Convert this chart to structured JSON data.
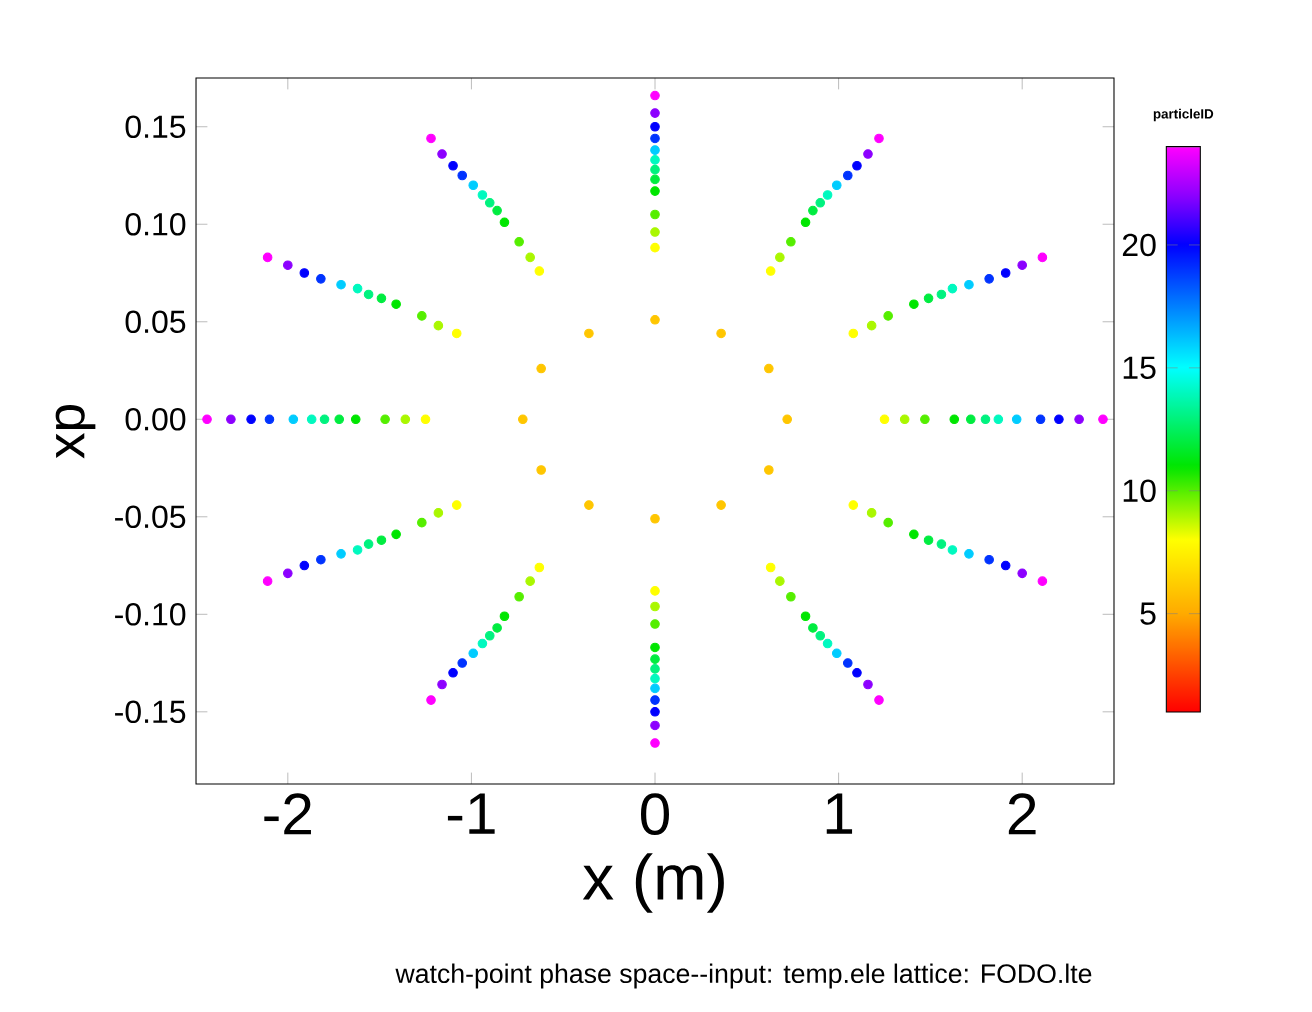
{
  "chart_data": {
    "type": "scatter",
    "xlabel": "x (m)",
    "ylabel": "xp",
    "clabel": "particleID",
    "annotations": [
      "watch-point phase space--input: temp.ele  lattice: FODO.lte"
    ],
    "xlim": [
      -2.5,
      2.5
    ],
    "xticks": [
      -2,
      -1,
      0,
      1,
      2
    ],
    "ylim": [
      -0.187,
      0.175
    ],
    "yticks": [
      {
        "value": -0.15,
        "label": "-0.15"
      },
      {
        "value": -0.1,
        "label": "-0.10"
      },
      {
        "value": -0.05,
        "label": "-0.05"
      },
      {
        "value": 0,
        "label": "0.00"
      },
      {
        "value": 0.05,
        "label": "0.05"
      },
      {
        "value": 0.1,
        "label": "0.10"
      },
      {
        "value": 0.15,
        "label": "0.15"
      }
    ],
    "clim": [
      1,
      24
    ],
    "cticks": [
      5,
      10,
      15,
      20
    ],
    "grid": false,
    "marker": "circle",
    "series": [
      {
        "x": [
          0.72,
          0.62,
          0.36,
          0,
          -0.36,
          -0.62,
          -0.72,
          -0.62,
          -0.36,
          0,
          0.36,
          0.62
        ],
        "values": [
          0,
          0.026,
          0.044,
          0.051,
          0.044,
          0.026,
          0,
          -0.026,
          -0.044,
          -0.051,
          -0.044,
          -0.026
        ],
        "cvalues": [
          6,
          6,
          6,
          6,
          6,
          6,
          6,
          6,
          6,
          6,
          6,
          6
        ]
      },
      {
        "x": [
          1.25,
          1.08,
          0.63,
          0,
          -0.63,
          -1.08,
          -1.25,
          -1.08,
          -0.63,
          0,
          0.63,
          1.08
        ],
        "values": [
          0,
          0.044,
          0.076,
          0.088,
          0.076,
          0.044,
          0,
          -0.044,
          -0.076,
          -0.088,
          -0.076,
          -0.044
        ],
        "cvalues": [
          8,
          8,
          8,
          8,
          8,
          8,
          8,
          8,
          8,
          8,
          8,
          8
        ]
      },
      {
        "x": [
          1.36,
          1.18,
          0.68,
          0,
          -0.68,
          -1.18,
          -1.36,
          -1.18,
          -0.68,
          0,
          0.68,
          1.18
        ],
        "values": [
          0,
          0.048,
          0.083,
          0.096,
          0.083,
          0.048,
          0,
          -0.048,
          -0.083,
          -0.096,
          -0.083,
          -0.048
        ],
        "cvalues": [
          9,
          9,
          9,
          9,
          9,
          9,
          9,
          9,
          9,
          9,
          9,
          9
        ]
      },
      {
        "x": [
          1.47,
          1.27,
          0.74,
          0,
          -0.74,
          -1.27,
          -1.47,
          -1.27,
          -0.74,
          0,
          0.74,
          1.27
        ],
        "values": [
          0,
          0.053,
          0.091,
          0.105,
          0.091,
          0.053,
          0,
          -0.053,
          -0.091,
          -0.105,
          -0.091,
          -0.053
        ],
        "cvalues": [
          10,
          10,
          10,
          10,
          10,
          10,
          10,
          10,
          10,
          10,
          10,
          10
        ]
      },
      {
        "x": [
          1.63,
          1.41,
          0.82,
          0,
          -0.82,
          -1.41,
          -1.63,
          -1.41,
          -0.82,
          0,
          0.82,
          1.41
        ],
        "values": [
          0,
          0.059,
          0.101,
          0.117,
          0.101,
          0.059,
          0,
          -0.059,
          -0.101,
          -0.117,
          -0.101,
          -0.059
        ],
        "cvalues": [
          11,
          11,
          11,
          11,
          11,
          11,
          11,
          11,
          11,
          11,
          11,
          11
        ]
      },
      {
        "x": [
          1.72,
          1.49,
          0.86,
          0,
          -0.86,
          -1.49,
          -1.72,
          -1.49,
          -0.86,
          0,
          0.86,
          1.49
        ],
        "values": [
          0,
          0.062,
          0.107,
          0.123,
          0.107,
          0.062,
          0,
          -0.062,
          -0.107,
          -0.123,
          -0.107,
          -0.062
        ],
        "cvalues": [
          12,
          12,
          12,
          12,
          12,
          12,
          12,
          12,
          12,
          12,
          12,
          12
        ]
      },
      {
        "x": [
          1.8,
          1.56,
          0.9,
          0,
          -0.9,
          -1.56,
          -1.8,
          -1.56,
          -0.9,
          0,
          0.9,
          1.56
        ],
        "values": [
          0,
          0.064,
          0.111,
          0.128,
          0.111,
          0.064,
          0,
          -0.064,
          -0.111,
          -0.128,
          -0.111,
          -0.064
        ],
        "cvalues": [
          13,
          13,
          13,
          13,
          13,
          13,
          13,
          13,
          13,
          13,
          13,
          13
        ]
      },
      {
        "x": [
          1.87,
          1.62,
          0.94,
          0,
          -0.94,
          -1.62,
          -1.87,
          -1.62,
          -0.94,
          0,
          0.94,
          1.62
        ],
        "values": [
          0,
          0.067,
          0.115,
          0.133,
          0.115,
          0.067,
          0,
          -0.067,
          -0.115,
          -0.133,
          -0.115,
          -0.067
        ],
        "cvalues": [
          14,
          14,
          14,
          14,
          14,
          14,
          14,
          14,
          14,
          14,
          14,
          14
        ]
      },
      {
        "x": [
          1.97,
          1.71,
          0.99,
          0,
          -0.99,
          -1.71,
          -1.97,
          -1.71,
          -0.99,
          0,
          0.99,
          1.71
        ],
        "values": [
          0,
          0.069,
          0.12,
          0.138,
          0.12,
          0.069,
          0,
          -0.069,
          -0.12,
          -0.138,
          -0.12,
          -0.069
        ],
        "cvalues": [
          16,
          16,
          16,
          16,
          16,
          16,
          16,
          16,
          16,
          16,
          16,
          16
        ]
      },
      {
        "x": [
          2.1,
          1.82,
          1.05,
          0,
          -1.05,
          -1.82,
          -2.1,
          -1.82,
          -1.05,
          0,
          1.05,
          1.82
        ],
        "values": [
          0,
          0.072,
          0.125,
          0.144,
          0.125,
          0.072,
          0,
          -0.072,
          -0.125,
          -0.144,
          -0.125,
          -0.072
        ],
        "cvalues": [
          19,
          19,
          19,
          19,
          19,
          19,
          19,
          19,
          19,
          19,
          19,
          19
        ]
      },
      {
        "x": [
          2.2,
          1.91,
          1.1,
          0,
          -1.1,
          -1.91,
          -2.2,
          -1.91,
          -1.1,
          0,
          1.1,
          1.91
        ],
        "values": [
          0,
          0.075,
          0.13,
          0.15,
          0.13,
          0.075,
          0,
          -0.075,
          -0.13,
          -0.15,
          -0.13,
          -0.075
        ],
        "cvalues": [
          20,
          20,
          20,
          20,
          20,
          20,
          20,
          20,
          20,
          20,
          20,
          20
        ]
      },
      {
        "x": [
          2.31,
          2.0,
          1.16,
          0,
          -1.16,
          -2.0,
          -2.31,
          -2.0,
          -1.16,
          0,
          1.16,
          2.0
        ],
        "values": [
          0,
          0.079,
          0.136,
          0.157,
          0.136,
          0.079,
          0,
          -0.079,
          -0.136,
          -0.157,
          -0.136,
          -0.079
        ],
        "cvalues": [
          22,
          22,
          22,
          22,
          22,
          22,
          22,
          22,
          22,
          22,
          22,
          22
        ]
      },
      {
        "x": [
          2.44,
          2.11,
          1.22,
          0,
          -1.22,
          -2.11,
          -2.44,
          -2.11,
          -1.22,
          0,
          1.22,
          2.11
        ],
        "values": [
          0,
          0.083,
          0.144,
          0.166,
          0.144,
          0.083,
          0,
          -0.083,
          -0.144,
          -0.166,
          -0.144,
          -0.083
        ],
        "cvalues": [
          24,
          24,
          24,
          24,
          24,
          24,
          24,
          24,
          24,
          24,
          24,
          24
        ]
      }
    ]
  }
}
